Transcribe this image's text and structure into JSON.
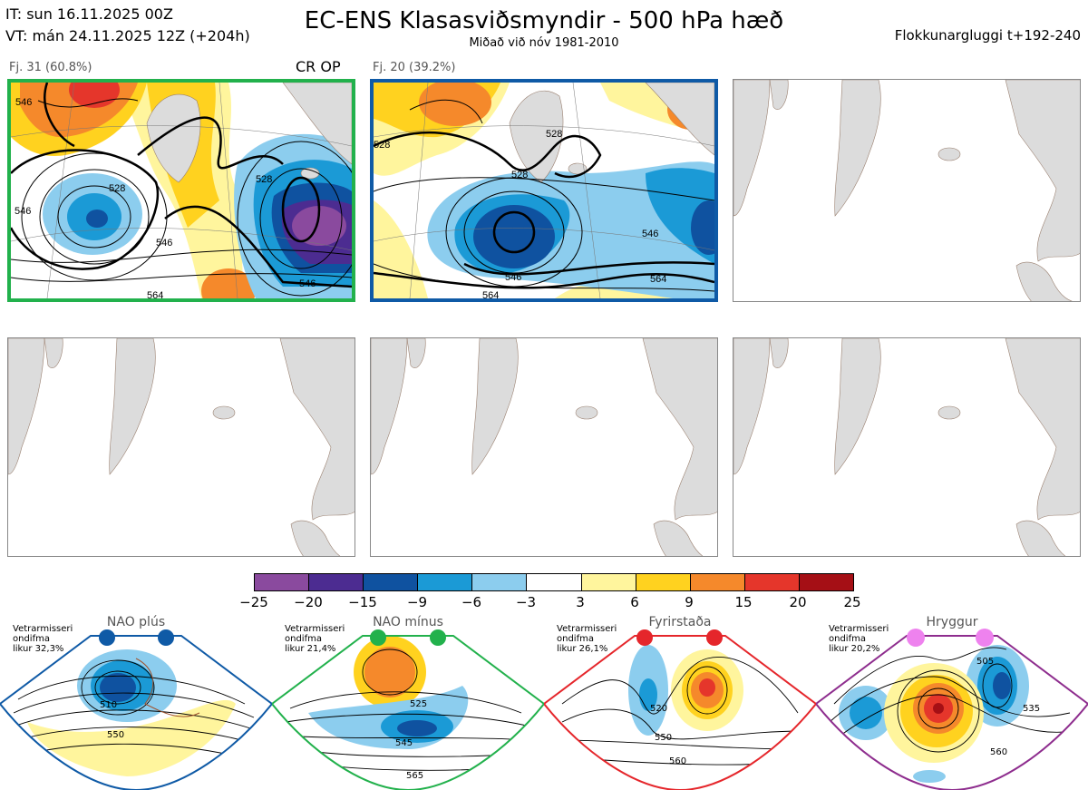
{
  "header": {
    "it": "IT: sun 16.11.2025 00Z",
    "vt": "VT: mán 24.11.2025 12Z  (+204h)",
    "title": "EC-ENS Klasasviðsmyndir - 500 hPa hæð",
    "subtitle": "Miðað við nóv 1981-2010",
    "window": "Flokkunargluggi t+192-240"
  },
  "clusters": [
    {
      "label": "Fj. 31 (60.8%)",
      "tag": "CR OP",
      "border": "#22b14c"
    },
    {
      "label": "Fj. 20 (39.2%)",
      "tag": "",
      "border": "#0f5aa6"
    }
  ],
  "contour_labels_1": [
    "546",
    "528",
    "546",
    "564",
    "546",
    "528",
    "546"
  ],
  "contour_labels_2": [
    "528",
    "528",
    "546",
    "546",
    "564",
    "564",
    "528"
  ],
  "colorbar": {
    "colors": [
      "#8a4a9e",
      "#4c2c91",
      "#0f52a0",
      "#1b9ad6",
      "#8ccdee",
      "#ffffff",
      "#fff59d",
      "#ffd21f",
      "#f5892b",
      "#e5362b",
      "#a50f15"
    ],
    "ticks": [
      "−25",
      "−20",
      "−15",
      "−9",
      "−6",
      "−3",
      "3",
      "6",
      "9",
      "15",
      "20",
      "25"
    ]
  },
  "regimes": [
    {
      "name": "NAO plús",
      "lines": [
        "Vetrarmisseri",
        "ondifma",
        "likur 32,3%"
      ],
      "color": "#0f5aa6",
      "labels": [
        "510",
        "550"
      ]
    },
    {
      "name": "NAO mínus",
      "lines": [
        "Vetrarmisseri",
        "ondifma",
        "likur 21,4%"
      ],
      "color": "#22b14c",
      "labels": [
        "525",
        "545",
        "565"
      ]
    },
    {
      "name": "Fyrirstaða",
      "lines": [
        "Vetrarmisseri",
        "ondifma",
        "likur 26,1%"
      ],
      "color": "#e5262b",
      "labels": [
        "520",
        "550",
        "560"
      ]
    },
    {
      "name": "Hryggur",
      "lines": [
        "Vetrarmisseri",
        "ondifma",
        "likur 20,2%"
      ],
      "color": "#8e2d8e",
      "labels": [
        "505",
        "535",
        "560"
      ]
    }
  ]
}
